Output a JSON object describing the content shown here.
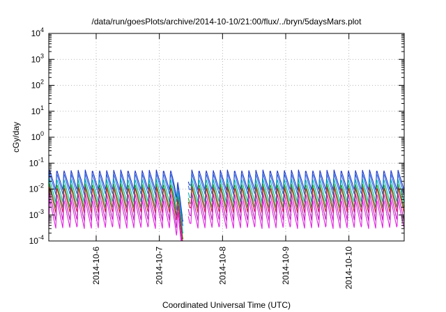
{
  "chart_data": {
    "type": "line",
    "title": "/data/run/goesPlots/archive/2014-10-10/21:00/flux/../bryn/5daysMars.plot",
    "xlabel": "Coordinated Universal Time (UTC)",
    "ylabel": "cGy/day",
    "yscale": "log",
    "ylim": [
      0.0001,
      10000
    ],
    "xlim": [
      "2014-10-05T06:00",
      "2014-10-10T21:00"
    ],
    "grid": true,
    "x_ticks": [
      "2014-10-6",
      "2014-10-7",
      "2014-10-8",
      "2014-10-9",
      "2014-10-10"
    ],
    "y_ticks": [
      {
        "base": "10",
        "exp": "-4"
      },
      {
        "base": "10",
        "exp": "-3"
      },
      {
        "base": "10",
        "exp": "-2"
      },
      {
        "base": "10",
        "exp": "-1"
      },
      {
        "base": "10",
        "exp": "0"
      },
      {
        "base": "10",
        "exp": "1"
      },
      {
        "base": "10",
        "exp": "2"
      },
      {
        "base": "10",
        "exp": "3"
      },
      {
        "base": "10",
        "exp": "4"
      }
    ],
    "oscillation_period_hours": 2.7,
    "data_gap": {
      "start": "2014-10-07T09:00",
      "end": "2014-10-07T11:00"
    },
    "dip_minimum": "2014-10-07T08:50",
    "series": [
      {
        "color": "#1a34c8",
        "peak": 0.055,
        "trough": 0.009
      },
      {
        "color": "#2a63e0",
        "peak": 0.04,
        "trough": 0.006
      },
      {
        "color": "#00b0b0",
        "peak": 0.025,
        "trough": 0.003
      },
      {
        "color": "#1a9a1a",
        "peak": 0.016,
        "trough": 0.0018
      },
      {
        "color": "#cc1f1f",
        "peak": 0.012,
        "trough": 0.0012
      },
      {
        "color": "#b41fb4",
        "peak": 0.007,
        "trough": 0.0006
      },
      {
        "color": "#e020e0",
        "peak": 0.004,
        "trough": 0.0003
      }
    ]
  }
}
